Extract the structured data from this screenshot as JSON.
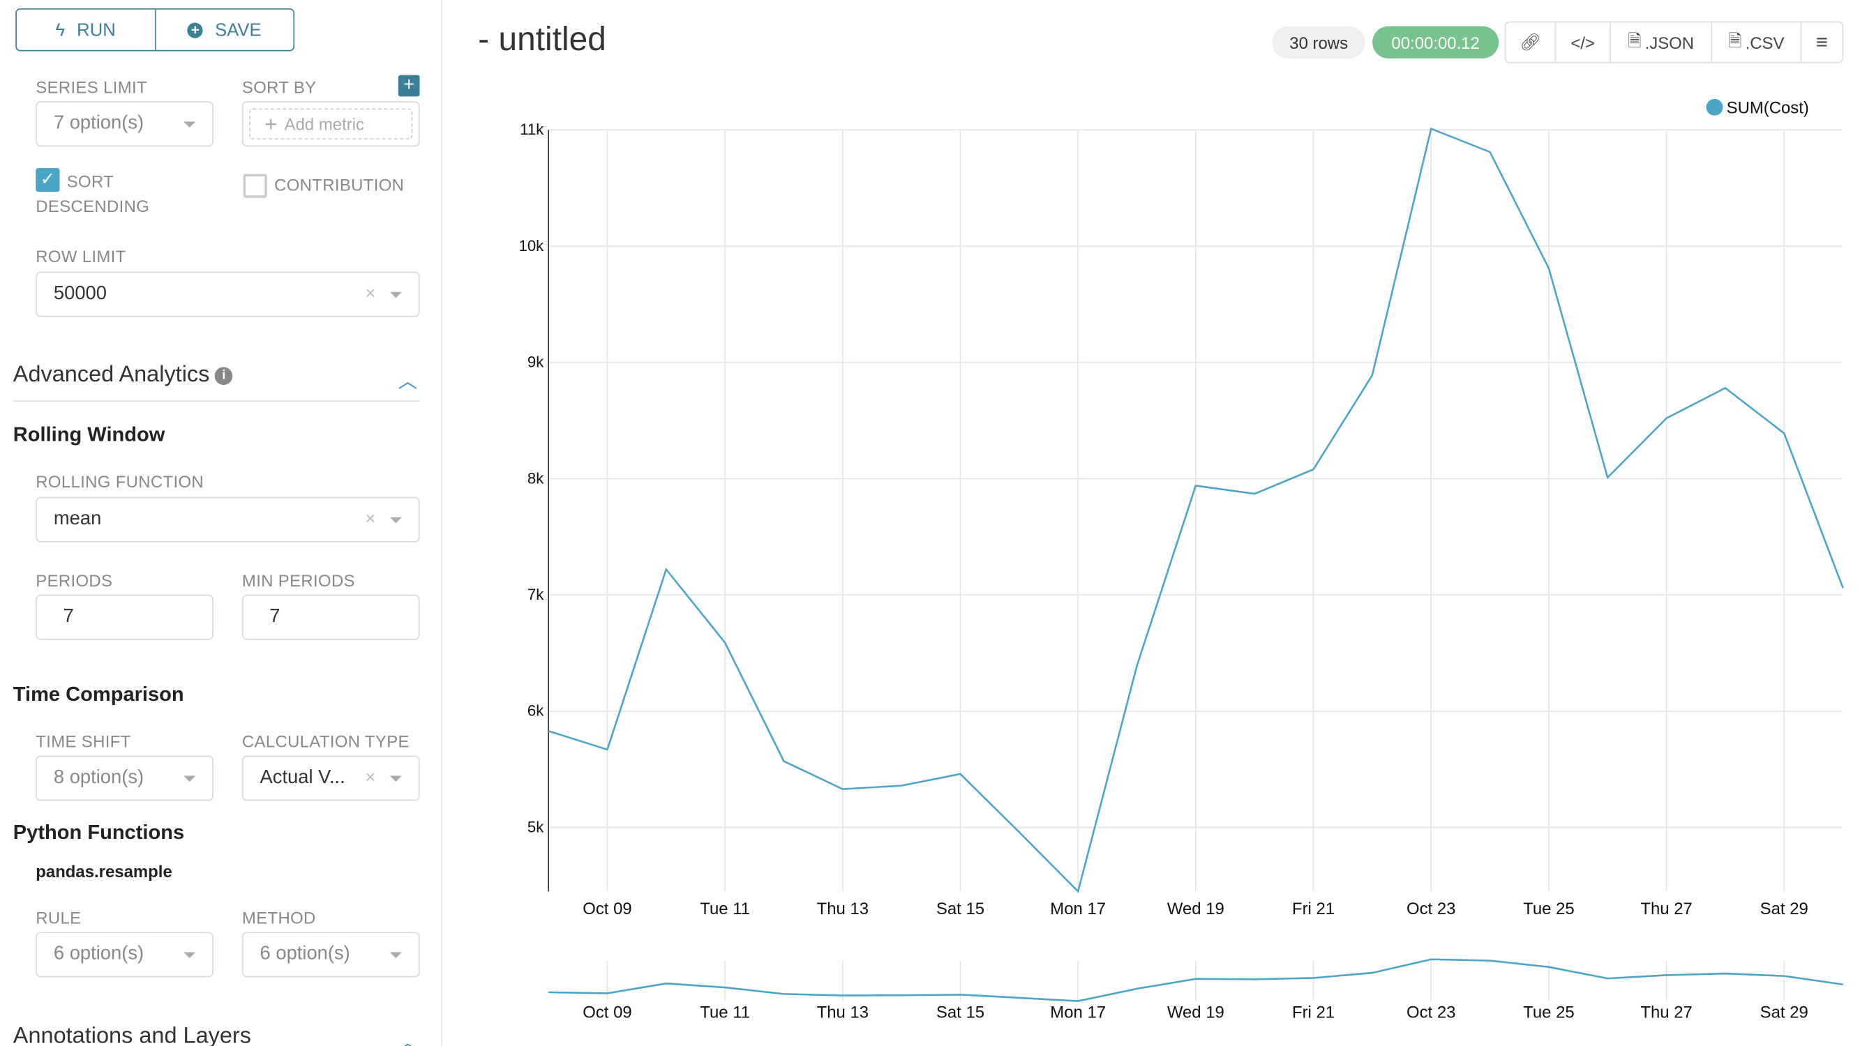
{
  "toolbar": {
    "run_label": "RUN",
    "save_label": "SAVE"
  },
  "controls": {
    "series_limit": {
      "label": "SERIES LIMIT",
      "value": "7 option(s)"
    },
    "sort_by": {
      "label": "SORT BY",
      "placeholder": "Add metric"
    },
    "sort_descending": {
      "label_line1": "SORT",
      "label_line2": "DESCENDING",
      "checked": true
    },
    "contribution": {
      "label": "CONTRIBUTION",
      "checked": false
    },
    "row_limit": {
      "label": "ROW LIMIT",
      "value": "50000"
    }
  },
  "advanced": {
    "title": "Advanced Analytics",
    "rolling_window": {
      "title": "Rolling Window",
      "function_label": "ROLLING FUNCTION",
      "function_value": "mean",
      "periods_label": "PERIODS",
      "periods_value": "7",
      "min_periods_label": "MIN PERIODS",
      "min_periods_value": "7"
    },
    "time_comparison": {
      "title": "Time Comparison",
      "time_shift_label": "TIME SHIFT",
      "time_shift_value": "8 option(s)",
      "calc_type_label": "CALCULATION TYPE",
      "calc_type_value": "Actual V..."
    },
    "python_functions": {
      "title": "Python Functions",
      "subtitle": "pandas.resample",
      "rule_label": "RULE",
      "rule_value": "6 option(s)",
      "method_label": "METHOD",
      "method_value": "6 option(s)"
    }
  },
  "annotations": {
    "title": "Annotations and Layers"
  },
  "header": {
    "title": "- untitled",
    "rows": "30 rows",
    "timer": "00:00:00.12",
    "json_label": ".JSON",
    "csv_label": ".CSV"
  },
  "colors": {
    "accent": "#3c7f99",
    "series": "#4aa5c7",
    "timer": "#78c28e"
  },
  "chart_data": {
    "type": "line",
    "legend": "top-right",
    "grid": true,
    "series": [
      {
        "name": "SUM(Cost)",
        "x": [
          "Oct 08",
          "Oct 09",
          "Oct 10",
          "Oct 11",
          "Oct 12",
          "Oct 13",
          "Oct 14",
          "Oct 15",
          "Oct 16",
          "Oct 17",
          "Oct 18",
          "Oct 19",
          "Oct 20",
          "Oct 21",
          "Oct 22",
          "Oct 23",
          "Oct 24",
          "Oct 25",
          "Oct 26",
          "Oct 27",
          "Oct 28",
          "Oct 29",
          "Oct 30"
        ],
        "values": [
          5830,
          5670,
          7220,
          6590,
          5570,
          5330,
          5360,
          5460,
          4960,
          4450,
          6390,
          7940,
          7870,
          8080,
          8890,
          11010,
          10810,
          9810,
          8010,
          8520,
          8780,
          8390,
          7060
        ]
      }
    ],
    "ylim": [
      4450,
      11000
    ],
    "y_ticks": [
      "5k",
      "6k",
      "7k",
      "8k",
      "9k",
      "10k",
      "11k"
    ],
    "x_ticks": [
      "Oct 09",
      "Tue 11",
      "Thu 13",
      "Sat 15",
      "Mon 17",
      "Wed 19",
      "Fri 21",
      "Oct 23",
      "Tue 25",
      "Thu 27",
      "Sat 29"
    ]
  }
}
